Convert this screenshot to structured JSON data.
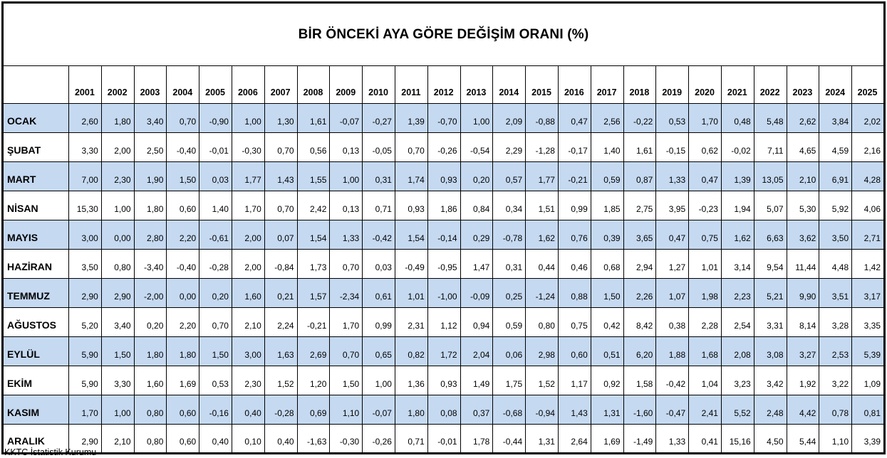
{
  "title": "BİR ÖNCEKİ AYA GÖRE DEĞİŞİM ORANI (%)",
  "source_note": "KKTC İstatistik Kurumu",
  "colors": {
    "band_row_bg": "#C5D9F1",
    "border": "#000000",
    "background": "#FFFFFF",
    "text": "#000000"
  },
  "chart_data": {
    "type": "table",
    "title": "BİR ÖNCEKİ AYA GÖRE DEĞİŞİM ORANI (%)",
    "columns": [
      "2001",
      "2002",
      "2003",
      "2004",
      "2005",
      "2006",
      "2007",
      "2008",
      "2009",
      "2010",
      "2011",
      "2012",
      "2013",
      "2014",
      "2015",
      "2016",
      "2017",
      "2018",
      "2019",
      "2020",
      "2021",
      "2022",
      "2023",
      "2024",
      "2025"
    ],
    "rows": [
      {
        "month": "OCAK",
        "values": [
          "2,60",
          "1,80",
          "3,40",
          "0,70",
          "-0,90",
          "1,00",
          "1,30",
          "1,61",
          "-0,07",
          "-0,27",
          "1,39",
          "-0,70",
          "1,00",
          "2,09",
          "-0,88",
          "0,47",
          "2,56",
          "-0,22",
          "0,53",
          "1,70",
          "0,48",
          "5,48",
          "2,62",
          "3,84",
          "2,02"
        ]
      },
      {
        "month": "ŞUBAT",
        "values": [
          "3,30",
          "2,00",
          "2,50",
          "-0,40",
          "-0,01",
          "-0,30",
          "0,70",
          "0,56",
          "0,13",
          "-0,05",
          "0,70",
          "-0,26",
          "-0,54",
          "2,29",
          "-1,28",
          "-0,17",
          "1,40",
          "1,61",
          "-0,15",
          "0,62",
          "-0,02",
          "7,11",
          "4,65",
          "4,59",
          "2,16"
        ]
      },
      {
        "month": "MART",
        "values": [
          "7,00",
          "2,30",
          "1,90",
          "1,50",
          "0,03",
          "1,77",
          "1,43",
          "1,55",
          "1,00",
          "0,31",
          "1,74",
          "0,93",
          "0,20",
          "0,57",
          "1,77",
          "-0,21",
          "0,59",
          "0,87",
          "1,33",
          "0,47",
          "1,39",
          "13,05",
          "2,10",
          "6,91",
          "4,28"
        ]
      },
      {
        "month": "NİSAN",
        "values": [
          "15,30",
          "1,00",
          "1,80",
          "0,60",
          "1,40",
          "1,70",
          "0,70",
          "2,42",
          "0,13",
          "0,71",
          "0,93",
          "1,86",
          "0,84",
          "0,34",
          "1,51",
          "0,99",
          "1,85",
          "2,75",
          "3,95",
          "-0,23",
          "1,94",
          "5,07",
          "5,30",
          "5,92",
          "4,06"
        ]
      },
      {
        "month": "MAYIS",
        "values": [
          "3,00",
          "0,00",
          "2,80",
          "2,20",
          "-0,61",
          "2,00",
          "0,07",
          "1,54",
          "1,33",
          "-0,42",
          "1,54",
          "-0,14",
          "0,29",
          "-0,78",
          "1,62",
          "0,76",
          "0,39",
          "3,65",
          "0,47",
          "0,75",
          "1,62",
          "6,63",
          "3,62",
          "3,50",
          "2,71"
        ]
      },
      {
        "month": "HAZİRAN",
        "values": [
          "3,50",
          "0,80",
          "-3,40",
          "-0,40",
          "-0,28",
          "2,00",
          "-0,84",
          "1,73",
          "0,70",
          "0,03",
          "-0,49",
          "-0,95",
          "1,47",
          "0,31",
          "0,44",
          "0,46",
          "0,68",
          "2,94",
          "1,27",
          "1,01",
          "3,14",
          "9,54",
          "11,44",
          "4,48",
          "1,42"
        ]
      },
      {
        "month": "TEMMUZ",
        "values": [
          "2,90",
          "2,90",
          "-2,00",
          "0,00",
          "0,20",
          "1,60",
          "0,21",
          "1,57",
          "-2,34",
          "0,61",
          "1,01",
          "-1,00",
          "-0,09",
          "0,25",
          "-1,24",
          "0,88",
          "1,50",
          "2,26",
          "1,07",
          "1,98",
          "2,23",
          "5,21",
          "9,90",
          "3,51",
          "3,17"
        ]
      },
      {
        "month": "AĞUSTOS",
        "values": [
          "5,20",
          "3,40",
          "0,20",
          "2,20",
          "0,70",
          "2,10",
          "2,24",
          "-0,21",
          "1,70",
          "0,99",
          "2,31",
          "1,12",
          "0,94",
          "0,59",
          "0,80",
          "0,75",
          "0,42",
          "8,42",
          "0,38",
          "2,28",
          "2,54",
          "3,31",
          "8,14",
          "3,28",
          "3,35"
        ]
      },
      {
        "month": "EYLÜL",
        "values": [
          "5,90",
          "1,50",
          "1,80",
          "1,80",
          "1,50",
          "3,00",
          "1,63",
          "2,69",
          "0,70",
          "0,65",
          "0,82",
          "1,72",
          "2,04",
          "0,06",
          "2,98",
          "0,60",
          "0,51",
          "6,20",
          "1,88",
          "1,68",
          "2,08",
          "3,08",
          "3,27",
          "2,53",
          "5,39"
        ]
      },
      {
        "month": "EKİM",
        "values": [
          "5,90",
          "3,30",
          "1,60",
          "1,69",
          "0,53",
          "2,30",
          "1,52",
          "1,20",
          "1,50",
          "1,00",
          "1,36",
          "0,93",
          "1,49",
          "1,75",
          "1,52",
          "1,17",
          "0,92",
          "1,58",
          "-0,42",
          "1,04",
          "3,23",
          "3,42",
          "1,92",
          "3,22",
          "1,09"
        ]
      },
      {
        "month": "KASIM",
        "values": [
          "1,70",
          "1,00",
          "0,80",
          "0,60",
          "-0,16",
          "0,40",
          "-0,28",
          "0,69",
          "1,10",
          "-0,07",
          "1,80",
          "0,08",
          "0,37",
          "-0,68",
          "-0,94",
          "1,43",
          "1,31",
          "-1,60",
          "-0,47",
          "2,41",
          "5,52",
          "2,48",
          "4,42",
          "0,78",
          "0,81"
        ]
      },
      {
        "month": "ARALIK",
        "values": [
          "2,90",
          "2,10",
          "0,80",
          "0,60",
          "0,40",
          "0,10",
          "0,40",
          "-1,63",
          "-0,30",
          "-0,26",
          "0,71",
          "-0,01",
          "1,78",
          "-0,44",
          "1,31",
          "2,64",
          "1,69",
          "-1,49",
          "1,33",
          "0,41",
          "15,16",
          "4,50",
          "5,44",
          "1,10",
          "3,39"
        ]
      }
    ]
  }
}
